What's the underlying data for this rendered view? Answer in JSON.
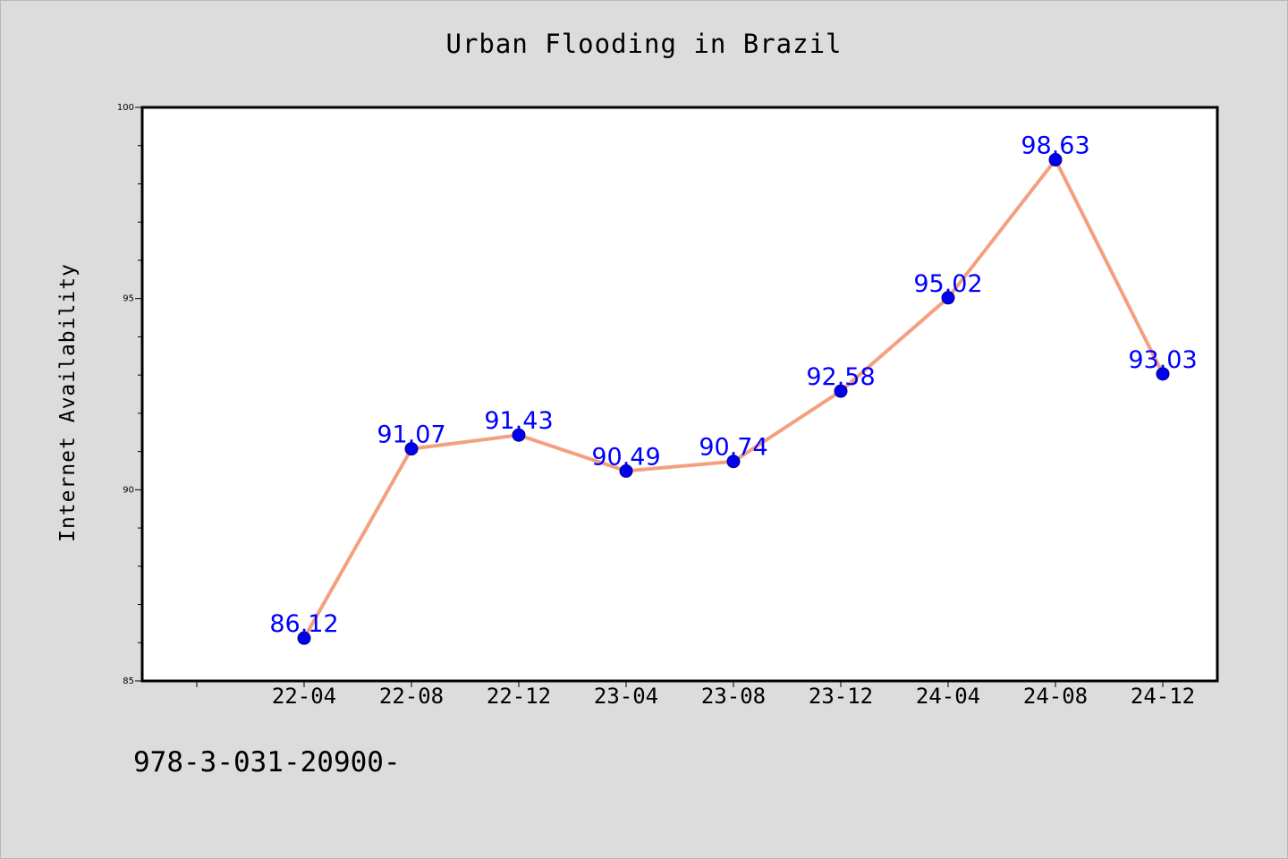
{
  "chart_data": {
    "type": "line",
    "title": "Urban Flooding in Brazil",
    "xlabel": "",
    "ylabel": "Internet Availability",
    "categories": [
      "22-04",
      "22-08",
      "22-12",
      "23-04",
      "23-08",
      "23-12",
      "24-04",
      "24-08",
      "24-12"
    ],
    "series": [
      {
        "values": [
          86.12,
          91.07,
          91.43,
          90.49,
          90.74,
          92.58,
          95.02,
          98.63,
          93.03
        ],
        "line_color": "#f4a080",
        "marker_color": "#0000ee"
      }
    ],
    "ylim": [
      85,
      100
    ],
    "y_ticks": [
      "85",
      "90",
      "95",
      "100"
    ],
    "grid": false,
    "data_labels": true,
    "label_color": "#0000ff"
  },
  "footer": {
    "text": "978-3-031-20900-"
  }
}
